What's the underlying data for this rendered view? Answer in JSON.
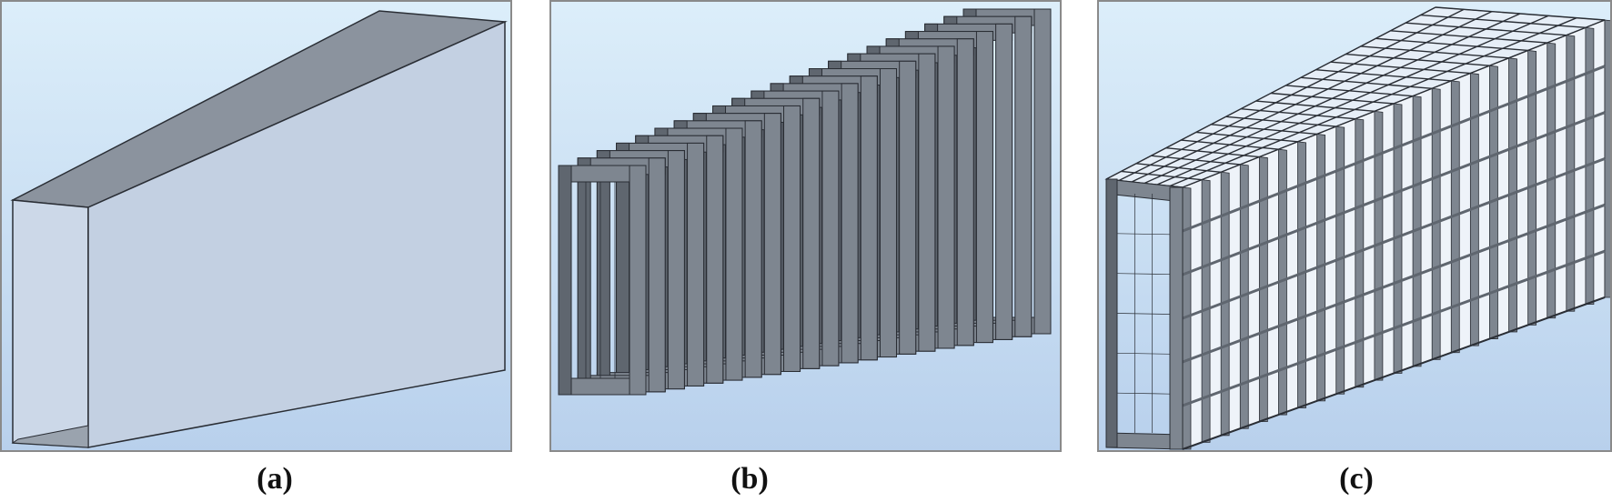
{
  "panels": [
    {
      "id": "a",
      "label": "(a)"
    },
    {
      "id": "b",
      "label": "(b)"
    },
    {
      "id": "c",
      "label": "(c)"
    }
  ],
  "colors": {
    "bg_top": "#dceefa",
    "bg_bottom": "#b8d0ec",
    "face_light": "#c9d6e6",
    "face_dark": "#8b939e",
    "face_mid": "#a6aeb8",
    "edge": "#2a2e35",
    "frame_fill": "#7e8690",
    "frame_dark": "#5f666f"
  },
  "structure_b": {
    "frame_count": 22
  },
  "structure_c": {
    "frame_count": 22,
    "longitudinal_count": 6
  }
}
